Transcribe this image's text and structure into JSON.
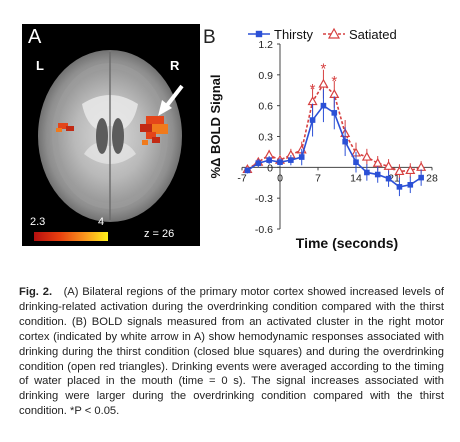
{
  "figure": {
    "panel_a": {
      "label": "A",
      "left_label": "L",
      "right_label": "R",
      "colorbar_min": "2.3",
      "colorbar_max": "4",
      "slice_label": "z = 26",
      "colorbar_colors": [
        "#b40f0f",
        "#e9400f",
        "#fb9a1e",
        "#fff21a"
      ]
    },
    "panel_b": {
      "label": "B"
    },
    "caption": {
      "fig_label": "Fig. 2.",
      "text": "(A) Bilateral regions of the primary motor cortex showed increased levels of drinking-related activation during the overdrinking condition compared with the thirst condition. (B) BOLD signals measured from an activated cluster in the right motor cortex (indicated by white arrow in A) show hemodynamic responses associated with drinking during the thirst condition (closed blue squares) and during the overdrinking condition (open red triangles). Drinking events were averaged according to the timing of water placed in the mouth (time = 0 s). The signal increases associated with drinking were larger during the overdrinking condition compared with the thirst condition. *P < 0.05."
    }
  },
  "chart_data": {
    "type": "line",
    "xlabel": "Time (seconds)",
    "ylabel": "%Δ BOLD Signal",
    "xlim": [
      -7,
      28
    ],
    "ylim": [
      -0.6,
      1.2
    ],
    "x_ticks": [
      -7,
      0,
      7,
      14,
      21,
      28
    ],
    "x_tick_labels": [
      "-7",
      "0",
      "7",
      "14",
      "21",
      "28"
    ],
    "y_ticks": [
      -0.6,
      -0.3,
      0,
      0.3,
      0.6,
      0.9,
      1.2
    ],
    "y_tick_labels": [
      "-0.6",
      "-0.3",
      "0",
      "0.3",
      "0.6",
      "0.9",
      "1.2"
    ],
    "legend_position": "top",
    "x": [
      -6,
      -4,
      -2,
      0,
      2,
      4,
      6,
      8,
      10,
      12,
      14,
      16,
      18,
      20,
      22,
      24,
      26
    ],
    "series": [
      {
        "name": "Thirsty",
        "color": "#2b50d6",
        "marker": "filled-square",
        "line_style": "solid",
        "values": [
          -0.03,
          0.04,
          0.07,
          0.05,
          0.07,
          0.1,
          0.46,
          0.6,
          0.53,
          0.25,
          0.05,
          -0.05,
          -0.07,
          -0.11,
          -0.19,
          -0.17,
          -0.1
        ],
        "errors": [
          0.03,
          0.04,
          0.04,
          0.04,
          0.05,
          0.08,
          0.16,
          0.16,
          0.16,
          0.14,
          0.1,
          0.08,
          0.08,
          0.08,
          0.09,
          0.08,
          0.08
        ]
      },
      {
        "name": "Satiated",
        "color": "#d64040",
        "marker": "open-triangle",
        "line_style": "dashed",
        "values": [
          -0.02,
          0.05,
          0.12,
          0.07,
          0.12,
          0.17,
          0.64,
          0.81,
          0.71,
          0.33,
          0.14,
          0.1,
          0.04,
          0.01,
          -0.04,
          -0.03,
          0.0
        ],
        "errors": [
          0.03,
          0.04,
          0.05,
          0.05,
          0.06,
          0.08,
          0.13,
          0.14,
          0.13,
          0.13,
          0.1,
          0.08,
          0.07,
          0.07,
          0.07,
          0.07,
          0.06
        ]
      }
    ],
    "annotations": [
      {
        "text": "*",
        "x": 6,
        "y": 0.77
      },
      {
        "text": "*",
        "x": 8,
        "y": 0.97
      },
      {
        "text": "*",
        "x": 10,
        "y": 0.85
      }
    ]
  }
}
